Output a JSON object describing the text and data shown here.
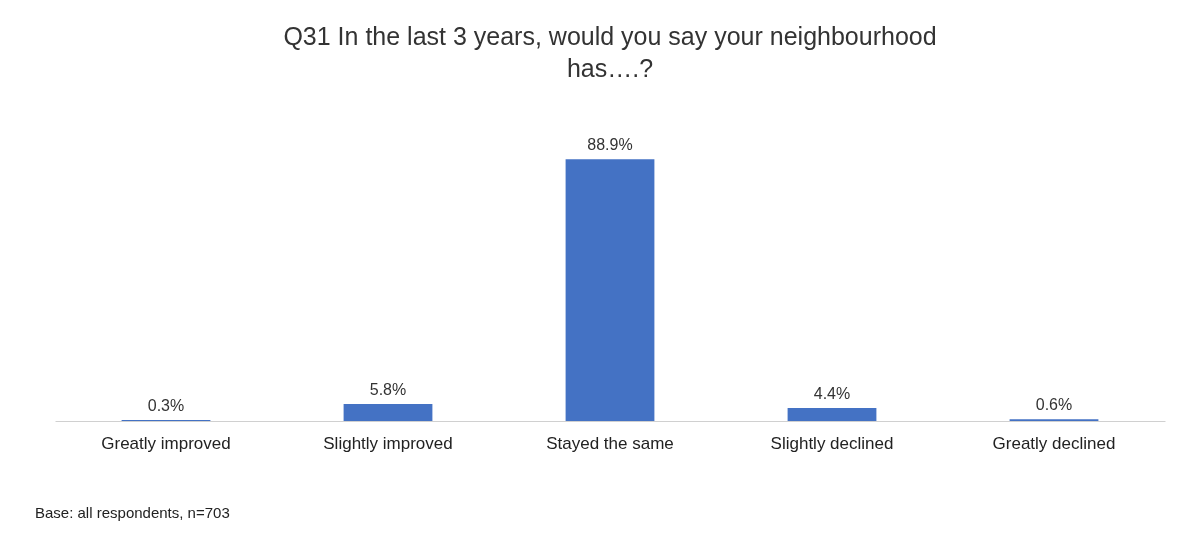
{
  "chart_data": {
    "type": "bar",
    "title": "Q31 In the last 3 years, would you say your neighbourhood has….?",
    "categories": [
      "Greatly improved",
      "Slightly improved",
      "Stayed the same",
      "Slightly declined",
      "Greatly declined"
    ],
    "values": [
      0.3,
      5.8,
      88.9,
      4.4,
      0.6
    ],
    "value_labels": [
      "0.3%",
      "5.8%",
      "88.9%",
      "4.4%",
      "0.6%"
    ],
    "color": "#4472c4",
    "grid": false,
    "annotations": [
      "Base: all respondents, n=703"
    ]
  }
}
